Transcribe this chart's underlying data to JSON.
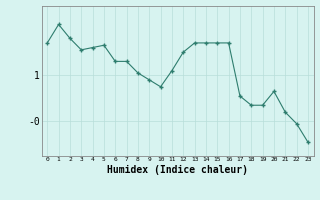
{
  "x": [
    0,
    1,
    2,
    3,
    4,
    5,
    6,
    7,
    8,
    9,
    10,
    11,
    12,
    13,
    14,
    15,
    16,
    17,
    18,
    19,
    20,
    21,
    22,
    23
  ],
  "y": [
    1.7,
    2.1,
    1.8,
    1.55,
    1.6,
    1.65,
    1.3,
    1.3,
    1.05,
    0.9,
    0.75,
    1.1,
    1.5,
    1.7,
    1.7,
    1.7,
    1.7,
    0.55,
    0.35,
    0.35,
    0.65,
    0.2,
    -0.05,
    -0.45
  ],
  "line_color": "#2e7d6e",
  "marker": "+",
  "marker_size": 3,
  "bg_color": "#d7f3f0",
  "grid_color": "#b8deda",
  "xlabel": "Humidex (Indice chaleur)",
  "ylim": [
    -0.75,
    2.5
  ],
  "xlim": [
    -0.5,
    23.5
  ],
  "ytick_vals": [
    0,
    1
  ],
  "ytick_labels": [
    "-0",
    "1"
  ]
}
